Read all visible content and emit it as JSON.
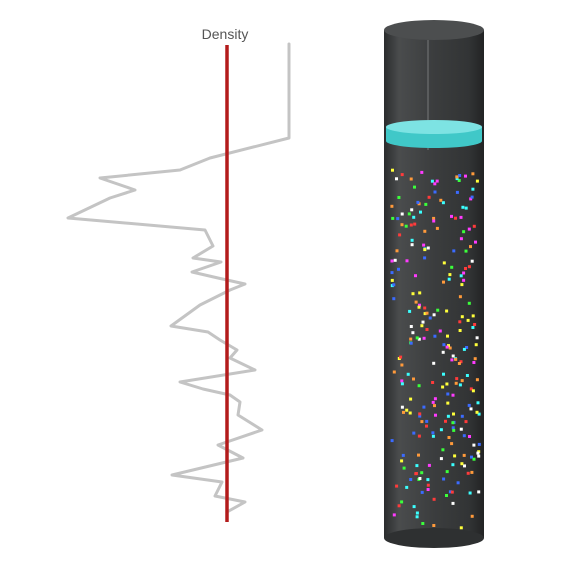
{
  "density_plot": {
    "label": "Density",
    "reference_line_color": "#b31b1b",
    "curve_color": "#c4c4c4"
  },
  "cylinder": {
    "body_color": "#3b3d3e",
    "piston_color": "#40c8c8",
    "particle_colors": [
      "#ff3b3b",
      "#3bff3b",
      "#3b6bff",
      "#ffff3b",
      "#ff3bff",
      "#3bffff",
      "#ffffff",
      "#ff9a3b"
    ]
  }
}
